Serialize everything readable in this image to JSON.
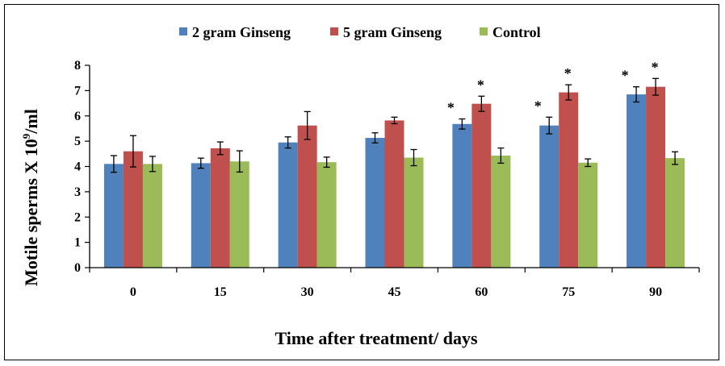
{
  "chart_data": {
    "type": "bar",
    "title": "",
    "xlabel": "Time after treatment/ days",
    "ylabel": "Motile sperms X 10",
    "ylabel_sup": "9",
    "ylabel_suffix": "/ml",
    "categories": [
      "0",
      "15",
      "30",
      "45",
      "60",
      "75",
      "90"
    ],
    "ylim": [
      0,
      8
    ],
    "yticks": [
      "0",
      "1",
      "2",
      "3",
      "4",
      "5",
      "6",
      "7",
      "8"
    ],
    "legend_position": "top",
    "grid": false,
    "significance_marker": "*",
    "series": [
      {
        "name": "2 gram Ginseng",
        "color": "#4f81bd",
        "values": [
          4.1,
          4.13,
          4.95,
          5.13,
          5.68,
          5.62,
          6.85
        ],
        "errors": [
          0.33,
          0.2,
          0.22,
          0.2,
          0.2,
          0.33,
          0.3
        ],
        "significant": [
          false,
          false,
          false,
          false,
          true,
          true,
          true
        ]
      },
      {
        "name": "5 gram Ginseng",
        "color": "#c0504d",
        "values": [
          4.6,
          4.72,
          5.62,
          5.82,
          6.48,
          6.93,
          7.15
        ],
        "errors": [
          0.62,
          0.25,
          0.55,
          0.13,
          0.3,
          0.3,
          0.33
        ],
        "significant": [
          false,
          false,
          false,
          false,
          true,
          true,
          true
        ]
      },
      {
        "name": "Control",
        "color": "#9bbb59",
        "values": [
          4.1,
          4.2,
          4.17,
          4.35,
          4.43,
          4.15,
          4.33
        ],
        "errors": [
          0.3,
          0.42,
          0.2,
          0.32,
          0.3,
          0.15,
          0.25
        ],
        "significant": [
          false,
          false,
          false,
          false,
          false,
          false,
          false
        ]
      }
    ]
  }
}
